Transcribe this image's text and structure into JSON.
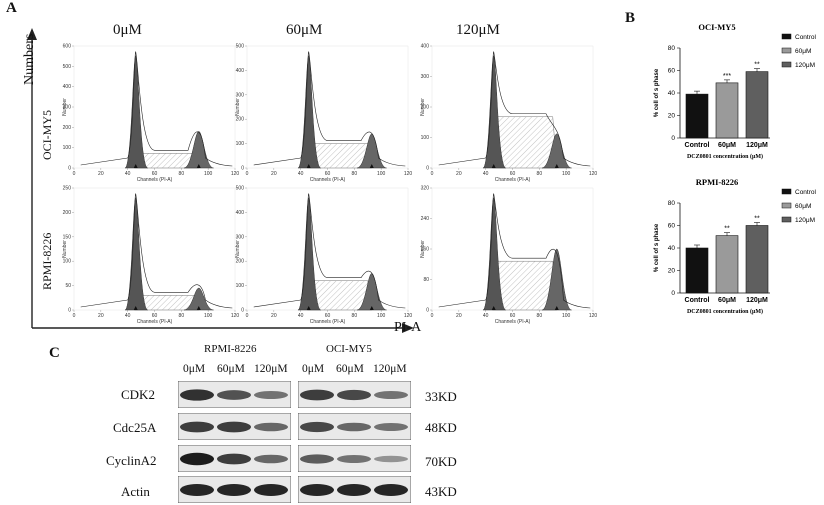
{
  "panel_a": {
    "letter": "A",
    "doses": [
      "0μM",
      "60μM",
      "120μM"
    ],
    "rows": [
      "OCI-MY5",
      "RPMI-8226"
    ],
    "y_axis_label": "Numbers",
    "x_axis_label": "PI-A",
    "hist_xlabel": "Channels (PI-A)",
    "hist_ylabel": "Number",
    "hist_x_ticks": [
      "0",
      "20",
      "40",
      "60",
      "80",
      "100",
      "120"
    ],
    "hist_y_ticks": [
      [
        [
          "600",
          "500",
          "400",
          "300",
          "200",
          "100",
          "0"
        ],
        [
          "500",
          "400",
          "300",
          "200",
          "100",
          "0"
        ],
        [
          "400",
          "300",
          "200",
          "100",
          "0"
        ]
      ],
      [
        [
          "250",
          "200",
          "150",
          "100",
          "50",
          "0"
        ],
        [
          "500",
          "400",
          "300",
          "200",
          "100",
          "0"
        ],
        [
          "320",
          "240",
          "160",
          "80",
          "0"
        ]
      ]
    ]
  },
  "panel_b": {
    "letter": "B",
    "chart_data": [
      {
        "type": "bar",
        "title": "OCI-MY5",
        "categories": [
          "Control",
          "60μM",
          "120μM"
        ],
        "values": [
          39,
          49,
          59
        ],
        "significance": [
          "",
          "***",
          "**"
        ],
        "ylabel": "% cell of s phase",
        "xlabel": "DCZ0801 concentration (μM)",
        "ylim": [
          0,
          80
        ],
        "y_ticks": [
          "0",
          "20",
          "40",
          "60",
          "80"
        ],
        "legend": [
          "Control",
          "60μM",
          "120μM"
        ],
        "legend_position": "right",
        "colors": [
          "#111111",
          "#9a9a9a",
          "#5f5f5f"
        ]
      },
      {
        "type": "bar",
        "title": "RPMI-8226",
        "categories": [
          "Control",
          "60μM",
          "120μM"
        ],
        "values": [
          40,
          51,
          60
        ],
        "significance": [
          "",
          "**",
          "**"
        ],
        "ylabel": "% cell of s phase",
        "xlabel": "DCZ0801 concentration (μM)",
        "ylim": [
          0,
          80
        ],
        "y_ticks": [
          "0",
          "20",
          "40",
          "60",
          "80"
        ],
        "legend": [
          "Control",
          "60μM",
          "120μM"
        ],
        "legend_position": "right",
        "colors": [
          "#111111",
          "#9a9a9a",
          "#5f5f5f"
        ]
      }
    ]
  },
  "panel_c": {
    "letter": "C",
    "cell_lines": [
      "RPMI-8226",
      "OCI-MY5"
    ],
    "doses": [
      "0μM",
      "60μM",
      "120μM"
    ],
    "proteins": [
      "CDK2",
      "Cdc25A",
      "CyclinA2",
      "Actin"
    ],
    "sizes": [
      "33KD",
      "48KD",
      "70KD",
      "43KD"
    ]
  }
}
